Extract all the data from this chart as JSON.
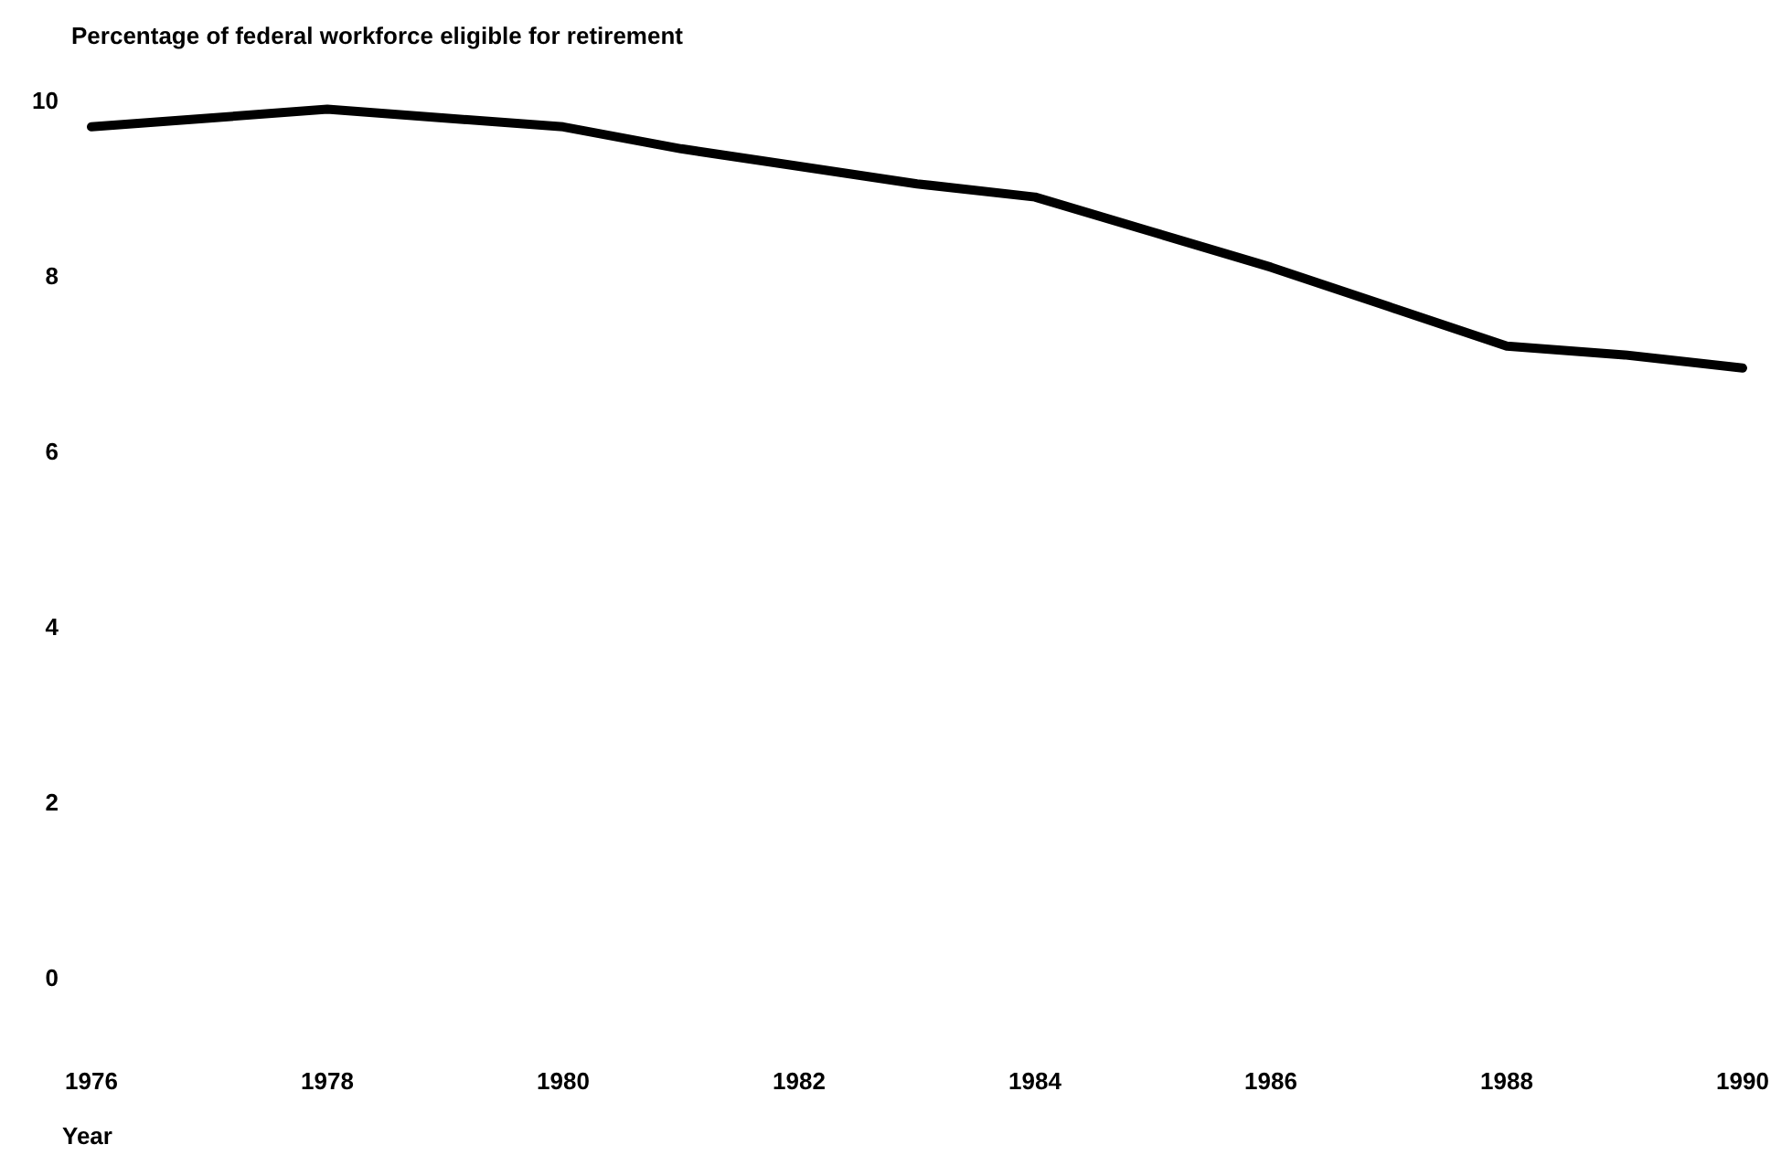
{
  "chart_data": {
    "type": "line",
    "title": "Percentage of federal workforce eligible for retirement",
    "xlabel": "Year",
    "x": [
      1976,
      1977,
      1978,
      1979,
      1980,
      1981,
      1982,
      1983,
      1984,
      1985,
      1986,
      1987,
      1988,
      1989,
      1990
    ],
    "series": [
      {
        "color": "#000000",
        "values": [
          9.7,
          9.8,
          9.9,
          9.8,
          9.7,
          9.45,
          9.25,
          9.05,
          8.9,
          8.5,
          8.1,
          7.65,
          7.2,
          7.1,
          6.95
        ]
      }
    ],
    "xlim": [
      1976,
      1990
    ],
    "xticks": [
      1976,
      1978,
      1980,
      1982,
      1984,
      1986,
      1988,
      1990
    ],
    "ylim": [
      0,
      10
    ],
    "yticks": [
      0,
      2,
      4,
      6,
      8,
      10
    ],
    "grid": false,
    "marker": "none",
    "line_style": "solid"
  }
}
